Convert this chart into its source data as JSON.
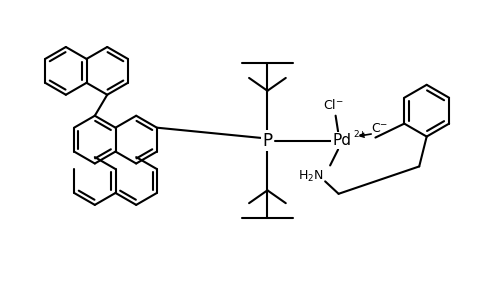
{
  "bg_color": "#ffffff",
  "line_color": "#000000",
  "line_width": 1.5,
  "font_size": 9,
  "figsize": [
    5.0,
    3.03
  ],
  "dpi": 100,
  "xlim": [
    0,
    10
  ],
  "ylim": [
    0,
    6.06
  ]
}
